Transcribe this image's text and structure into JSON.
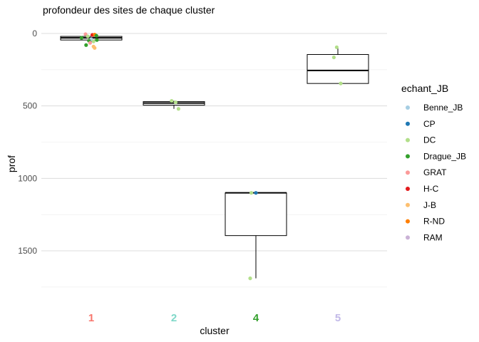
{
  "chart_data": {
    "type": "box",
    "title": "profondeur des sites de chaque cluster",
    "xlabel": "cluster",
    "ylabel": "prof",
    "y_reversed": true,
    "ylim": [
      -30,
      1870
    ],
    "yticks": [
      0,
      500,
      1000,
      1500
    ],
    "grid": "horizontal",
    "legend": {
      "title": "echant_JB",
      "placement": "right",
      "items": [
        {
          "label": "Benne_JB",
          "color": "#a6cee3"
        },
        {
          "label": "CP",
          "color": "#1f78b4"
        },
        {
          "label": "DC",
          "color": "#b2df8a"
        },
        {
          "label": "Drague_JB",
          "color": "#33a02c"
        },
        {
          "label": "GRAT",
          "color": "#fb9a99"
        },
        {
          "label": "H-C",
          "color": "#e31a1c"
        },
        {
          "label": "J-B",
          "color": "#fdbf6f"
        },
        {
          "label": "R-ND",
          "color": "#ff7f00"
        },
        {
          "label": "RAM",
          "color": "#cab2d6"
        }
      ]
    },
    "categories": [
      {
        "label": "1",
        "color": "#f8766d"
      },
      {
        "label": "2",
        "color": "#7fd8c8"
      },
      {
        "label": "4",
        "color": "#33a02c"
      },
      {
        "label": "5",
        "color": "#c2b9e8"
      }
    ],
    "boxes": [
      {
        "cluster": "1",
        "min": 5,
        "q1": 20,
        "median": 30,
        "q3": 45,
        "max": 60
      },
      {
        "cluster": "2",
        "min": 465,
        "q1": 470,
        "median": 480,
        "q3": 495,
        "max": 520
      },
      {
        "cluster": "4",
        "min": 1100,
        "q1": 1100,
        "median": 1100,
        "q3": 1395,
        "max": 1690
      },
      {
        "cluster": "5",
        "min": 95,
        "q1": 145,
        "median": 255,
        "q3": 345,
        "max": 345
      }
    ],
    "points": [
      {
        "cluster": "1",
        "y": 5,
        "group": "GRAT",
        "jitter": -0.1
      },
      {
        "cluster": "1",
        "y": 10,
        "group": "H-C",
        "jitter": 0.02
      },
      {
        "cluster": "1",
        "y": 8,
        "group": "R-ND",
        "jitter": 0.06
      },
      {
        "cluster": "1",
        "y": 15,
        "group": "Drague_JB",
        "jitter": 0.09
      },
      {
        "cluster": "1",
        "y": 20,
        "group": "DC",
        "jitter": -0.06
      },
      {
        "cluster": "1",
        "y": 30,
        "group": "Drague_JB",
        "jitter": -0.17
      },
      {
        "cluster": "1",
        "y": 40,
        "group": "Benne_JB",
        "jitter": 0.0
      },
      {
        "cluster": "1",
        "y": 45,
        "group": "Drague_JB",
        "jitter": 0.1
      },
      {
        "cluster": "1",
        "y": 50,
        "group": "Drague_JB",
        "jitter": -0.04
      },
      {
        "cluster": "1",
        "y": 55,
        "group": "DC",
        "jitter": 0.04
      },
      {
        "cluster": "1",
        "y": 65,
        "group": "GRAT",
        "jitter": -0.02
      },
      {
        "cluster": "1",
        "y": 80,
        "group": "Drague_JB",
        "jitter": -0.09
      },
      {
        "cluster": "1",
        "y": 90,
        "group": "J-B",
        "jitter": 0.04
      },
      {
        "cluster": "1",
        "y": 100,
        "group": "J-B",
        "jitter": 0.06
      },
      {
        "cluster": "2",
        "y": 465,
        "group": "DC",
        "jitter": -0.04
      },
      {
        "cluster": "2",
        "y": 475,
        "group": "DC",
        "jitter": 0.03
      },
      {
        "cluster": "2",
        "y": 520,
        "group": "DC",
        "jitter": 0.08
      },
      {
        "cluster": "4",
        "y": 1100,
        "group": "DC",
        "jitter": -0.08
      },
      {
        "cluster": "4",
        "y": 1100,
        "group": "CP",
        "jitter": 0.0
      },
      {
        "cluster": "4",
        "y": 1690,
        "group": "DC",
        "jitter": -0.1
      },
      {
        "cluster": "5",
        "y": 95,
        "group": "DC",
        "jitter": -0.02
      },
      {
        "cluster": "5",
        "y": 165,
        "group": "DC",
        "jitter": -0.07
      },
      {
        "cluster": "5",
        "y": 345,
        "group": "DC",
        "jitter": 0.05
      }
    ]
  }
}
